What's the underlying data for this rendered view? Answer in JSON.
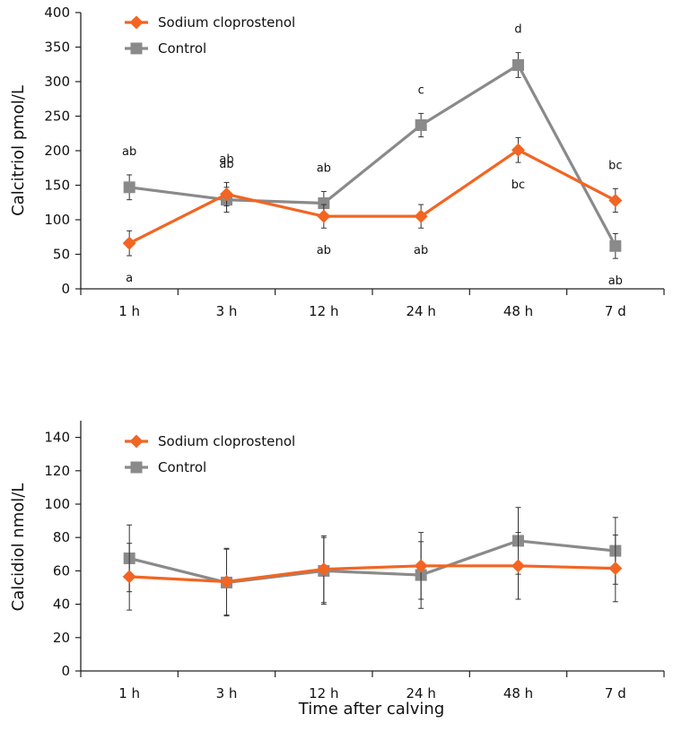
{
  "xlabel": "Time after calving",
  "chart_data": [
    {
      "type": "line",
      "title": "",
      "xlabel": "",
      "ylabel": "Calcitriol pmol/L",
      "categories": [
        "1 h",
        "3 h",
        "12 h",
        "24 h",
        "48 h",
        "7 d"
      ],
      "ylim": [
        0,
        400
      ],
      "yticks": [
        0,
        50,
        100,
        150,
        200,
        250,
        300,
        350,
        400
      ],
      "legend_position": "top-left",
      "series": [
        {
          "name": "Sodium cloprostenol",
          "marker": "diamond",
          "color": "#f26522",
          "values": [
            66,
            137,
            105,
            105,
            201,
            128
          ],
          "errors": [
            18,
            17,
            17,
            17,
            18,
            17
          ],
          "letters": [
            "a",
            "ab",
            "ab",
            "ab",
            "bc",
            "bc"
          ]
        },
        {
          "name": "Control",
          "marker": "square",
          "color": "#8a8a8a",
          "values": [
            147,
            129,
            124,
            237,
            324,
            62
          ],
          "errors": [
            18,
            18,
            17,
            17,
            18,
            18
          ],
          "letters": [
            "ab",
            "ab",
            "ab",
            "c",
            "d",
            "ab"
          ]
        }
      ]
    },
    {
      "type": "line",
      "title": "",
      "xlabel": "",
      "ylabel": "Calcidiol nmol/L",
      "categories": [
        "1 h",
        "3 h",
        "12 h",
        "24 h",
        "48 h",
        "7 d"
      ],
      "ylim": [
        0,
        150
      ],
      "yticks": [
        0,
        20,
        40,
        60,
        80,
        100,
        120,
        140
      ],
      "legend_position": "top-left",
      "series": [
        {
          "name": "Sodium cloprostenol",
          "marker": "diamond",
          "color": "#f26522",
          "values": [
            56.5,
            53.5,
            61,
            63,
            63,
            61.5
          ],
          "errors": [
            20,
            20,
            20,
            20,
            20,
            20
          ]
        },
        {
          "name": "Control",
          "marker": "square",
          "color": "#8a8a8a",
          "values": [
            67.5,
            53,
            60,
            57.5,
            78,
            72
          ],
          "errors": [
            20,
            20,
            20,
            20,
            20,
            20
          ]
        }
      ]
    }
  ]
}
